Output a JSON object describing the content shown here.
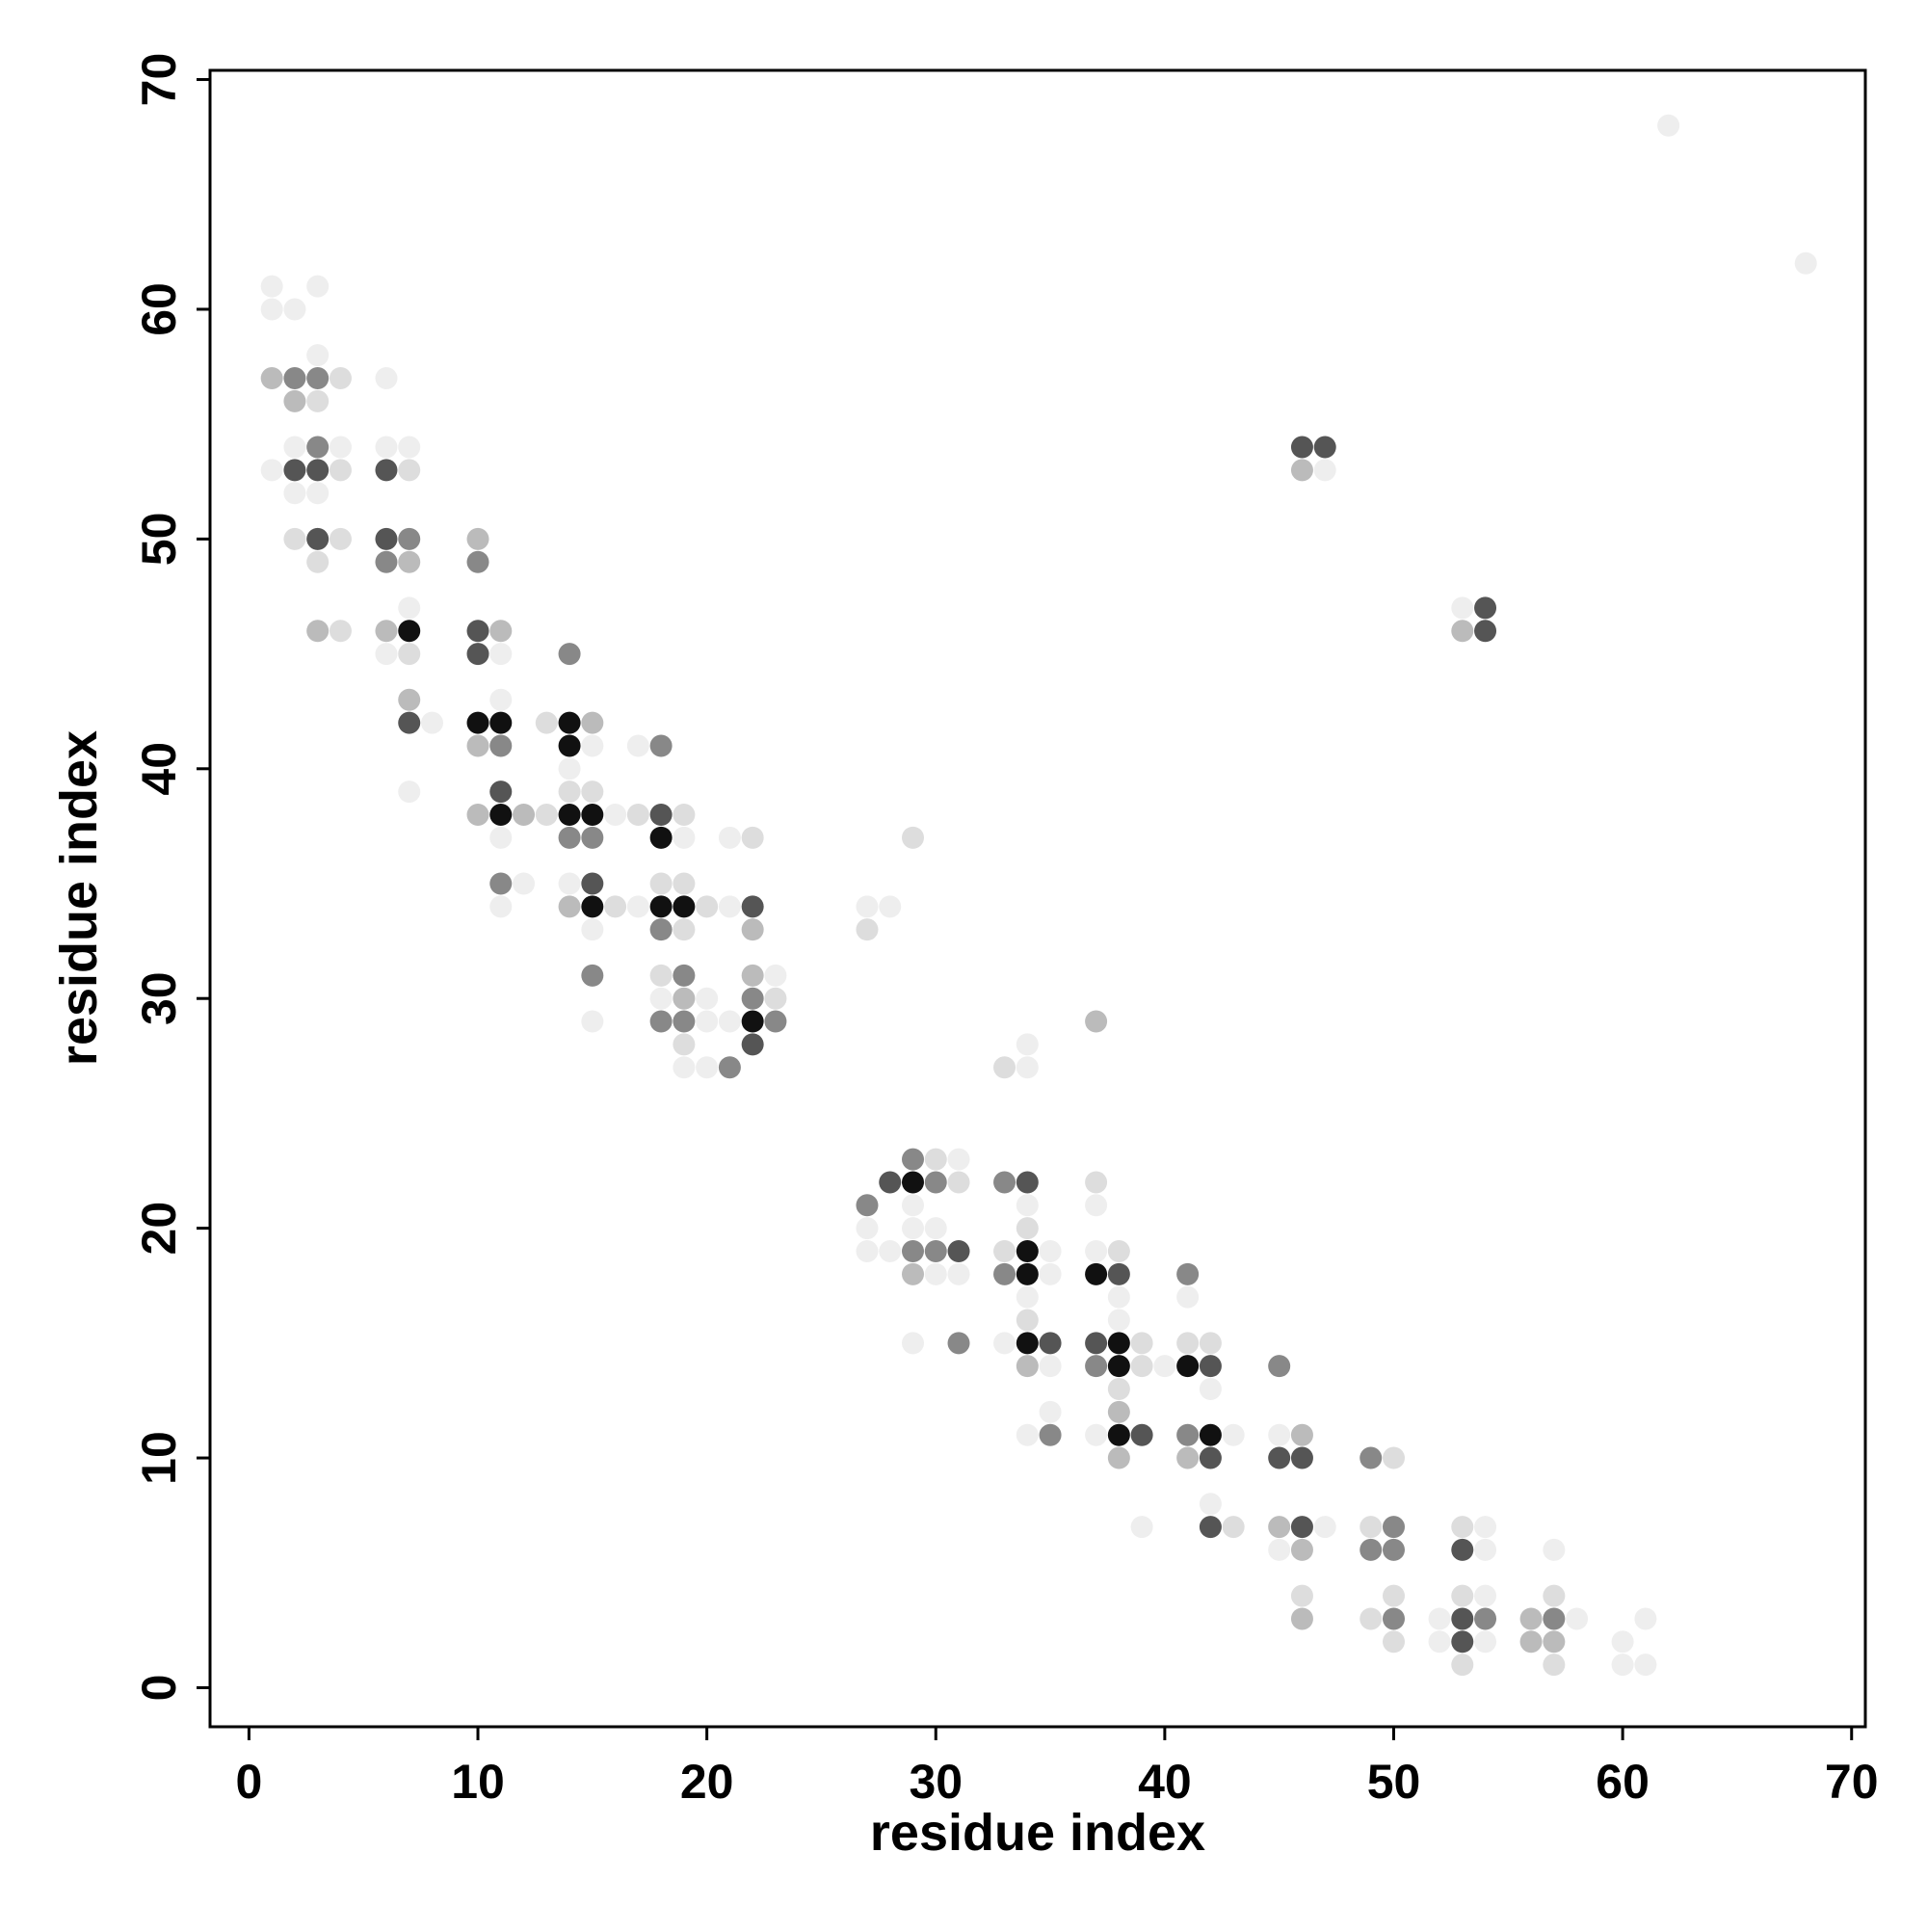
{
  "chart_data": {
    "type": "scatter",
    "xlabel": "residue index",
    "ylabel": "residue index",
    "xlim": [
      -1.7,
      70.6
    ],
    "ylim": [
      -1.7,
      70.4
    ],
    "xticks": [
      0,
      10,
      20,
      30,
      40,
      50,
      60,
      70
    ],
    "yticks": [
      0,
      10,
      20,
      30,
      40,
      50,
      60,
      70
    ],
    "x": [
      62,
      68,
      1,
      3,
      1,
      2,
      3,
      1,
      2,
      3,
      4,
      6,
      2,
      3,
      2,
      3,
      4,
      6,
      7,
      46,
      47,
      1,
      2,
      3,
      4,
      6,
      7,
      46,
      47,
      2,
      3,
      2,
      3,
      4,
      6,
      7,
      10,
      3,
      6,
      7,
      10,
      7,
      53,
      54,
      3,
      4,
      6,
      7,
      10,
      11,
      53,
      54,
      6,
      7,
      10,
      11,
      14,
      7,
      11,
      7,
      8,
      10,
      11,
      13,
      14,
      15,
      10,
      11,
      14,
      15,
      17,
      18,
      14,
      7,
      11,
      14,
      15,
      10,
      11,
      12,
      13,
      14,
      15,
      16,
      17,
      18,
      19,
      11,
      14,
      15,
      18,
      19,
      21,
      22,
      29,
      11,
      12,
      14,
      15,
      18,
      19,
      11,
      14,
      15,
      16,
      17,
      18,
      19,
      20,
      21,
      22,
      27,
      28,
      15,
      18,
      19,
      22,
      27,
      15,
      18,
      19,
      22,
      23,
      18,
      19,
      20,
      22,
      23,
      15,
      18,
      19,
      20,
      21,
      22,
      23,
      37,
      19,
      22,
      34,
      19,
      20,
      21,
      33,
      34,
      29,
      30,
      31,
      28,
      29,
      30,
      31,
      33,
      34,
      37,
      27,
      29,
      34,
      37,
      27,
      29,
      30,
      34,
      27,
      28,
      29,
      30,
      31,
      33,
      34,
      35,
      37,
      38,
      29,
      30,
      31,
      33,
      34,
      35,
      37,
      38,
      41,
      34,
      38,
      41,
      34,
      38,
      29,
      31,
      33,
      34,
      35,
      37,
      38,
      39,
      41,
      42,
      34,
      35,
      37,
      38,
      39,
      40,
      41,
      42,
      45,
      38,
      42,
      35,
      38,
      34,
      35,
      37,
      38,
      39,
      41,
      42,
      43,
      45,
      46,
      38,
      41,
      42,
      45,
      46,
      49,
      50,
      42,
      39,
      42,
      43,
      45,
      46,
      47,
      49,
      50,
      53,
      54,
      45,
      46,
      49,
      50,
      53,
      54,
      57,
      46,
      50,
      53,
      54,
      57,
      46,
      49,
      50,
      52,
      53,
      54,
      56,
      57,
      58,
      61,
      50,
      52,
      53,
      54,
      56,
      57,
      60,
      53,
      57,
      60,
      61
    ],
    "values": [
      68,
      62,
      61,
      61,
      60,
      60,
      58,
      57,
      57,
      57,
      57,
      57,
      56,
      56,
      54,
      54,
      54,
      54,
      54,
      54,
      54,
      53,
      53,
      53,
      53,
      53,
      53,
      53,
      53,
      52,
      52,
      50,
      50,
      50,
      50,
      50,
      50,
      49,
      49,
      49,
      49,
      47,
      47,
      47,
      46,
      46,
      46,
      46,
      46,
      46,
      46,
      46,
      45,
      45,
      45,
      45,
      45,
      43,
      43,
      42,
      42,
      42,
      42,
      42,
      42,
      42,
      41,
      41,
      41,
      41,
      41,
      41,
      40,
      39,
      39,
      39,
      39,
      38,
      38,
      38,
      38,
      38,
      38,
      38,
      38,
      38,
      38,
      37,
      37,
      37,
      37,
      37,
      37,
      37,
      37,
      35,
      35,
      35,
      35,
      35,
      35,
      34,
      34,
      34,
      34,
      34,
      34,
      34,
      34,
      34,
      34,
      34,
      34,
      33,
      33,
      33,
      33,
      33,
      31,
      31,
      31,
      31,
      31,
      30,
      30,
      30,
      30,
      30,
      29,
      29,
      29,
      29,
      29,
      29,
      29,
      29,
      28,
      28,
      28,
      27,
      27,
      27,
      27,
      27,
      23,
      23,
      23,
      22,
      22,
      22,
      22,
      22,
      22,
      22,
      21,
      21,
      21,
      21,
      20,
      20,
      20,
      20,
      19,
      19,
      19,
      19,
      19,
      19,
      19,
      19,
      19,
      19,
      18,
      18,
      18,
      18,
      18,
      18,
      18,
      18,
      18,
      17,
      17,
      17,
      16,
      16,
      15,
      15,
      15,
      15,
      15,
      15,
      15,
      15,
      15,
      15,
      14,
      14,
      14,
      14,
      14,
      14,
      14,
      14,
      14,
      13,
      13,
      12,
      12,
      11,
      11,
      11,
      11,
      11,
      11,
      11,
      11,
      11,
      11,
      10,
      10,
      10,
      10,
      10,
      10,
      10,
      8,
      7,
      7,
      7,
      7,
      7,
      7,
      7,
      7,
      7,
      7,
      6,
      6,
      6,
      6,
      6,
      6,
      6,
      4,
      4,
      4,
      4,
      4,
      3,
      3,
      3,
      3,
      3,
      3,
      3,
      3,
      3,
      3,
      2,
      2,
      2,
      2,
      2,
      2,
      2,
      1,
      1,
      1,
      1
    ],
    "colors": [
      "#eee",
      "#eee",
      "#eee",
      "#eee",
      "#eee",
      "#eee",
      "#eee",
      "#bbb",
      "#888",
      "#888",
      "#ddd",
      "#eee",
      "#bbb",
      "#ddd",
      "#eee",
      "#888",
      "#eee",
      "#eee",
      "#eee",
      "#555",
      "#555",
      "#eee",
      "#555",
      "#555",
      "#ddd",
      "#555",
      "#ddd",
      "#bbb",
      "#eee",
      "#eee",
      "#eee",
      "#ddd",
      "#555",
      "#ddd",
      "#555",
      "#888",
      "#bbb",
      "#ddd",
      "#888",
      "#bbb",
      "#888",
      "#eee",
      "#eee",
      "#555",
      "#bbb",
      "#ddd",
      "#bbb",
      "#111",
      "#555",
      "#bbb",
      "#bbb",
      "#555",
      "#eee",
      "#ddd",
      "#555",
      "#eee",
      "#888",
      "#bbb",
      "#eee",
      "#555",
      "#eee",
      "#111",
      "#111",
      "#ddd",
      "#111",
      "#bbb",
      "#bbb",
      "#888",
      "#111",
      "#eee",
      "#eee",
      "#888",
      "#eee",
      "#eee",
      "#555",
      "#ddd",
      "#ddd",
      "#bbb",
      "#111",
      "#bbb",
      "#ddd",
      "#111",
      "#111",
      "#eee",
      "#ddd",
      "#555",
      "#ddd",
      "#eee",
      "#888",
      "#888",
      "#111",
      "#eee",
      "#eee",
      "#ddd",
      "#ddd",
      "#888",
      "#eee",
      "#eee",
      "#555",
      "#ddd",
      "#ddd",
      "#eee",
      "#bbb",
      "#111",
      "#ddd",
      "#eee",
      "#111",
      "#111",
      "#ddd",
      "#eee",
      "#555",
      "#eee",
      "#eee",
      "#eee",
      "#888",
      "#ddd",
      "#bbb",
      "#ddd",
      "#888",
      "#ddd",
      "#888",
      "#bbb",
      "#eee",
      "#eee",
      "#bbb",
      "#eee",
      "#888",
      "#ddd",
      "#eee",
      "#888",
      "#888",
      "#eee",
      "#eee",
      "#111",
      "#888",
      "#bbb",
      "#ddd",
      "#555",
      "#eee",
      "#eee",
      "#eee",
      "#888",
      "#ddd",
      "#eee",
      "#888",
      "#ddd",
      "#eee",
      "#555",
      "#111",
      "#888",
      "#ddd",
      "#888",
      "#555",
      "#ddd",
      "#888",
      "#eee",
      "#eee",
      "#eee",
      "#eee",
      "#eee",
      "#eee",
      "#ddd",
      "#eee",
      "#eee",
      "#888",
      "#888",
      "#555",
      "#ddd",
      "#111",
      "#eee",
      "#eee",
      "#ddd",
      "#bbb",
      "#eee",
      "#eee",
      "#888",
      "#111",
      "#eee",
      "#111",
      "#555",
      "#888",
      "#eee",
      "#eee",
      "#eee",
      "#ddd",
      "#eee",
      "#eee",
      "#888",
      "#eee",
      "#111",
      "#555",
      "#555",
      "#111",
      "#ddd",
      "#ddd",
      "#ddd",
      "#bbb",
      "#eee",
      "#888",
      "#111",
      "#ddd",
      "#eee",
      "#111",
      "#555",
      "#888",
      "#ddd",
      "#eee",
      "#eee",
      "#bbb",
      "#eee",
      "#888",
      "#eee",
      "#111",
      "#555",
      "#888",
      "#111",
      "#eee",
      "#eee",
      "#bbb",
      "#bbb",
      "#bbb",
      "#555",
      "#555",
      "#555",
      "#888",
      "#ddd",
      "#eee",
      "#eee",
      "#555",
      "#ddd",
      "#bbb",
      "#555",
      "#eee",
      "#ddd",
      "#888",
      "#ddd",
      "#eee",
      "#eee",
      "#bbb",
      "#888",
      "#888",
      "#555",
      "#eee",
      "#eee",
      "#ddd",
      "#ddd",
      "#ddd",
      "#eee",
      "#ddd",
      "#bbb",
      "#ddd",
      "#888",
      "#eee",
      "#555",
      "#888",
      "#bbb",
      "#888",
      "#eee",
      "#eee",
      "#ddd",
      "#eee",
      "#555",
      "#eee",
      "#bbb",
      "#bbb",
      "#eee",
      "#ddd",
      "#ddd",
      "#eee",
      "#eee"
    ]
  }
}
